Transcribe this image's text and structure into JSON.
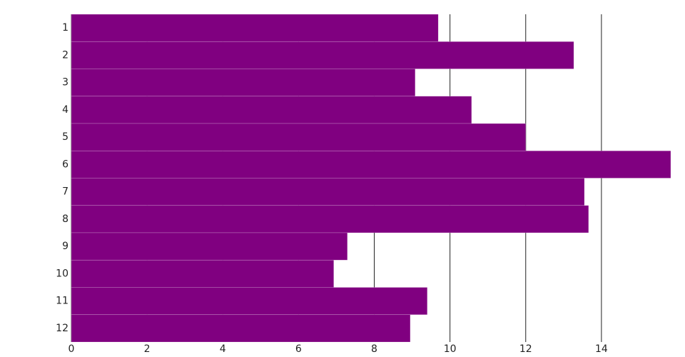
{
  "chart_data": {
    "type": "hbar",
    "categories": [
      "1",
      "2",
      "3",
      "4",
      "5",
      "6",
      "7",
      "8",
      "9",
      "10",
      "11",
      "12"
    ],
    "values": [
      9.69,
      13.27,
      9.08,
      10.57,
      12.0,
      15.83,
      13.55,
      13.66,
      7.29,
      6.93,
      9.4,
      8.95
    ],
    "color": "#800080",
    "xlim": [
      0,
      15.83
    ],
    "xticks": [
      0,
      2,
      4,
      6,
      8,
      10,
      12,
      14
    ],
    "grid": true
  }
}
